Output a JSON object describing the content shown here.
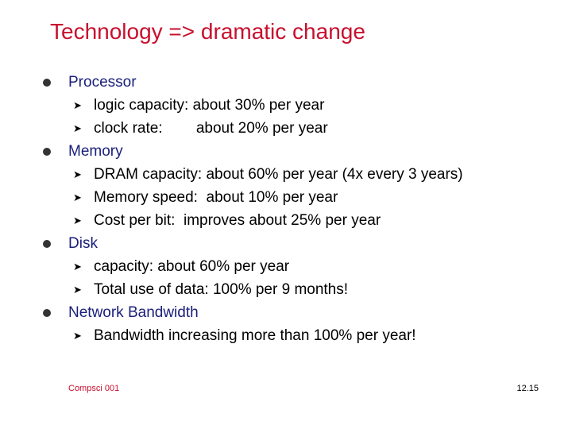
{
  "slide": {
    "title": "Technology => dramatic change",
    "bullets": [
      {
        "label": "Processor",
        "items": [
          "logic capacity: about 30% per year",
          "clock rate:        about 20% per year"
        ]
      },
      {
        "label": "Memory",
        "items": [
          "DRAM capacity: about 60% per year (4x every 3 years)",
          "Memory speed:  about 10% per year",
          "Cost per bit:  improves about 25% per year"
        ]
      },
      {
        "label": "Disk",
        "items": [
          "capacity: about 60% per year",
          "Total use of data: 100% per 9 months!"
        ]
      },
      {
        "label": "Network Bandwidth",
        "items": [
          "Bandwidth increasing more than 100% per year!"
        ]
      }
    ],
    "footer_left": "Compsci 001",
    "footer_right": "12.15"
  },
  "colors": {
    "title": "#c8102e",
    "level1": "#1a1f7a",
    "level2": "#000000"
  },
  "icons": {
    "level1_bullet": "filled-circle",
    "level2_bullet": "arrowhead-right"
  }
}
